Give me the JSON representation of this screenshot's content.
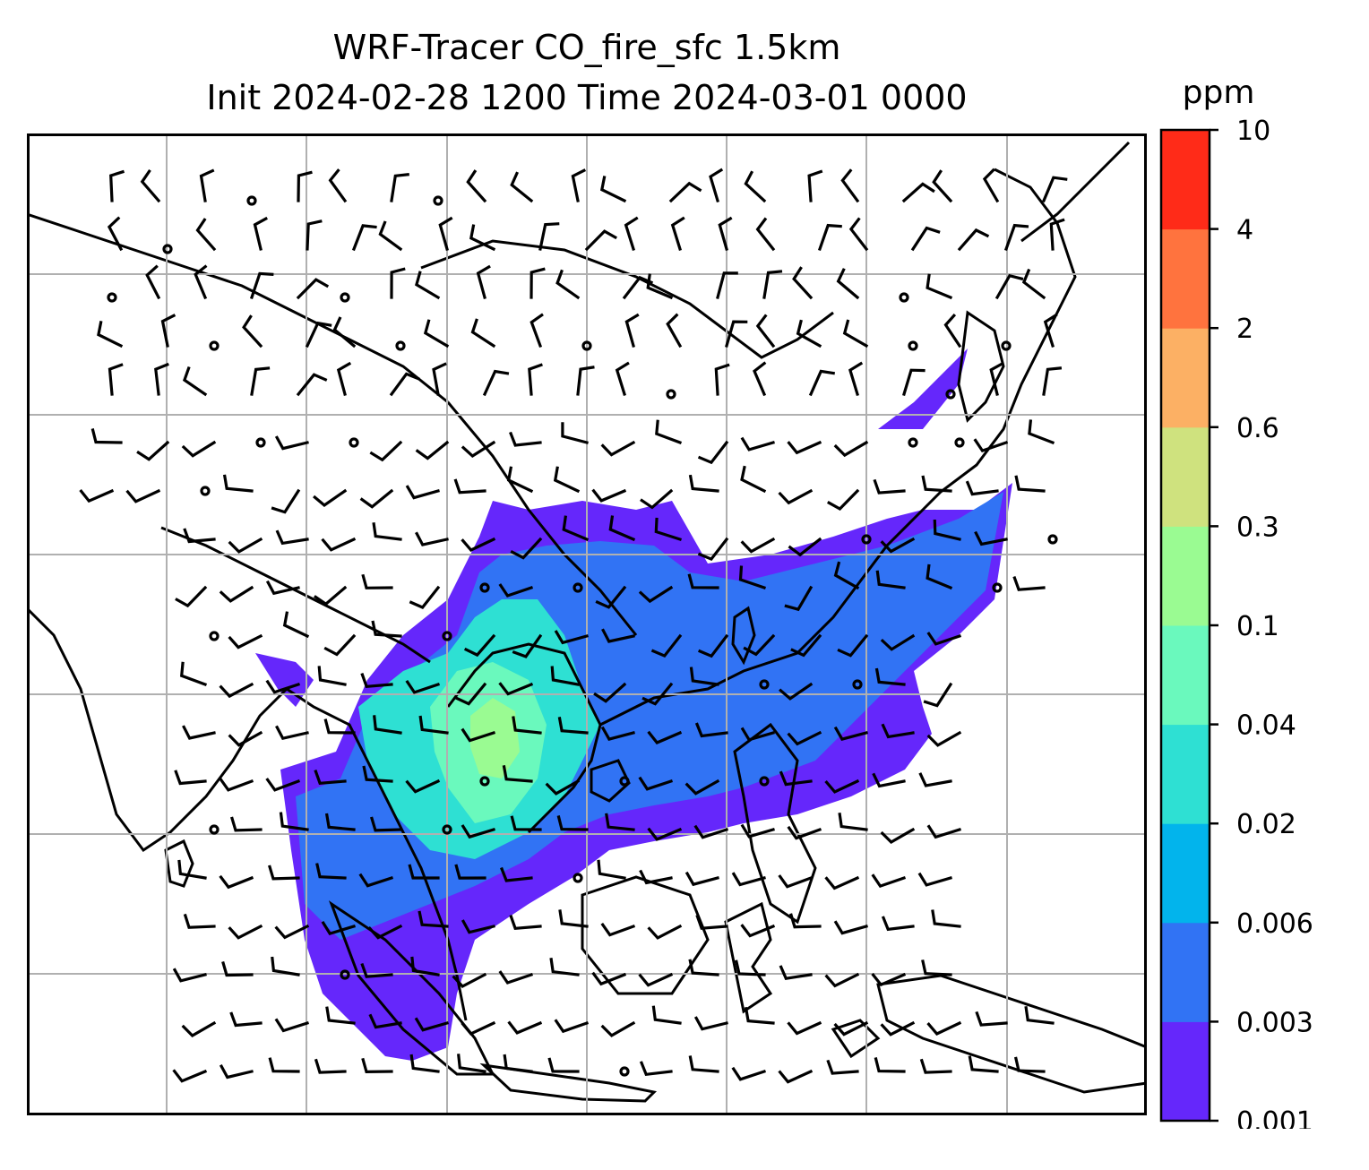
{
  "title": {
    "line1": "WRF-Tracer CO_fire_sfc 1.5km",
    "line2": "Init 2024-02-28 1200 Time 2024-03-01 0000"
  },
  "colorbar": {
    "unit": "ppm",
    "ticks": [
      "0.001",
      "0.003",
      "0.006",
      "0.02",
      "0.04",
      "0.1",
      "0.3",
      "0.6",
      "2",
      "4",
      "10"
    ],
    "colors": [
      "#6527fb",
      "#3173f4",
      "#02b4ec",
      "#2ee0d3",
      "#6af9bd",
      "#9afb92",
      "#cfe27e",
      "#fcb064",
      "#ff733e",
      "#ff2b18"
    ]
  },
  "map": {
    "gridlines": true,
    "layers": [
      "coastlines",
      "country-borders",
      "wind-barbs",
      "co-fire-concentration"
    ]
  }
}
